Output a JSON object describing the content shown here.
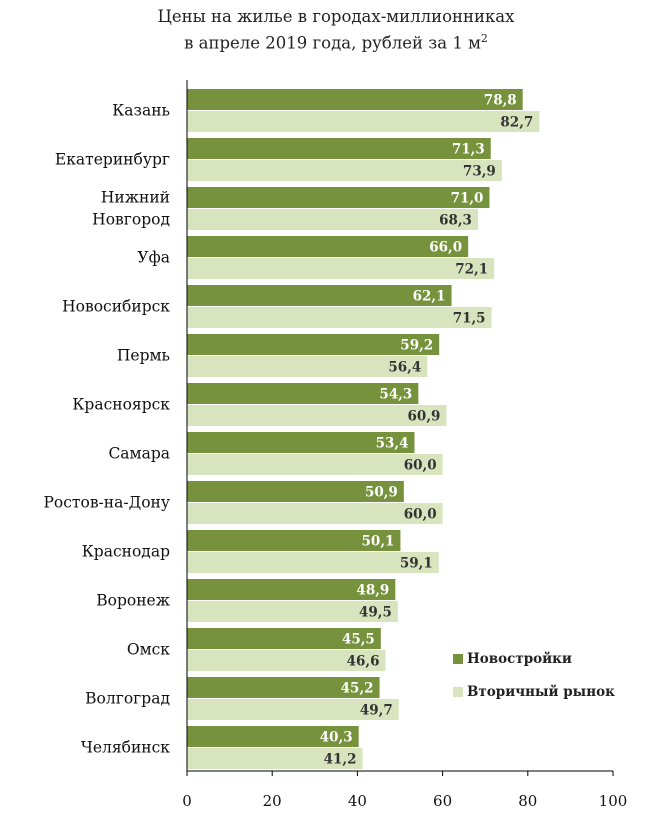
{
  "chart_data": {
    "type": "bar",
    "orientation": "horizontal",
    "title_line1": "Цены на жилье в городах-миллионниках",
    "title_line2": "в апреле 2019 года, рублей за 1 м",
    "title_superscript": "2",
    "categories": [
      [
        "Казань"
      ],
      [
        "Екатеринбург"
      ],
      [
        "Нижний ",
        "Новгород"
      ],
      [
        "Уфа"
      ],
      [
        "Новосибирск"
      ],
      [
        "Пермь"
      ],
      [
        "Красноярск"
      ],
      [
        "Самара"
      ],
      [
        "Ростов-на-Дону"
      ],
      [
        "Краснодар"
      ],
      [
        "Воронеж"
      ],
      [
        "Омск"
      ],
      [
        "Волгоград"
      ],
      [
        "Челябинск"
      ]
    ],
    "series": [
      {
        "name": "Новостройки",
        "color": "#76923c",
        "values": [
          78.8,
          71.3,
          71.0,
          66.0,
          62.1,
          59.2,
          54.3,
          53.4,
          50.9,
          50.1,
          48.9,
          45.5,
          45.2,
          40.3
        ],
        "labels": [
          "78,8",
          "71,3",
          "71,0",
          "66,0",
          "62,1",
          "59,2",
          "54,3",
          "53,4",
          "50,9",
          "50,1",
          "48,9",
          "45,5",
          "45,2",
          "40,3"
        ]
      },
      {
        "name": "Вторичный рынок",
        "color": "#d7e4bd",
        "values": [
          82.7,
          73.9,
          68.3,
          72.1,
          71.5,
          56.4,
          60.9,
          60.0,
          60.0,
          59.1,
          49.5,
          46.6,
          49.7,
          41.2
        ],
        "labels": [
          "82,7",
          "73,9",
          "68,3",
          "72,1",
          "71,5",
          "56,4",
          "60,9",
          "60,0",
          "60,0",
          "59,1",
          "49,5",
          "46,6",
          "49,7",
          "41,2"
        ]
      }
    ],
    "xlim": [
      0,
      100
    ],
    "xticks": [
      "0",
      "20",
      "40",
      "60",
      "80",
      "100"
    ],
    "grid": false,
    "legend_position": "right"
  }
}
